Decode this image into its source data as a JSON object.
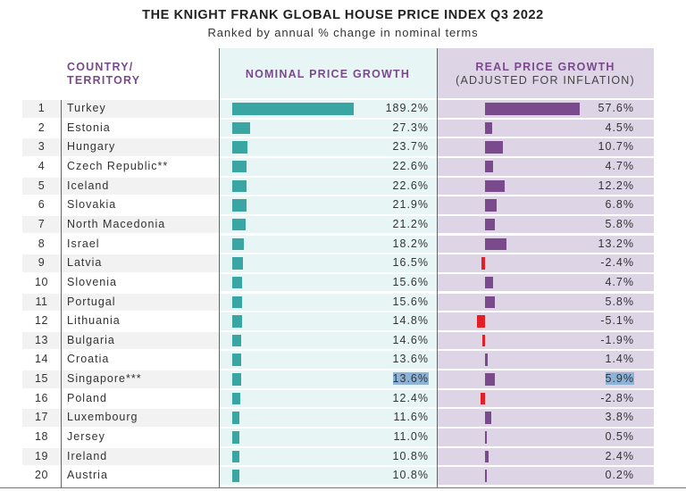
{
  "chart_data": {
    "type": "table",
    "title": "THE KNIGHT FRANK GLOBAL HOUSE PRICE INDEX Q3 2022",
    "subtitle": "Ranked by annual % change in nominal terms",
    "columns": {
      "country": "COUNTRY/ TERRITORY",
      "nominal": "NOMINAL PRICE GROWTH",
      "real": "REAL PRICE GROWTH",
      "real_sub": "(ADJUSTED FOR INFLATION)"
    },
    "unit": "%",
    "nominal_range": [
      0,
      189.2
    ],
    "real_range": [
      -5.1,
      57.6
    ],
    "colors": {
      "nominal_bar": "#3aa6a4",
      "real_positive_bar": "#7a4a8c",
      "real_negative_bar": "#e41e26",
      "header_text": "#7a4a8c",
      "nominal_bg": "#e8f5f5",
      "real_bg": "#ddd4e6"
    },
    "rows": [
      {
        "rank": "1",
        "country": "Turkey",
        "nominal": 189.2,
        "nominal_label": "189.2%",
        "real": 57.6,
        "real_label": "57.6%"
      },
      {
        "rank": "2",
        "country": "Estonia",
        "nominal": 27.3,
        "nominal_label": "27.3%",
        "real": 4.5,
        "real_label": "4.5%"
      },
      {
        "rank": "3",
        "country": "Hungary",
        "nominal": 23.7,
        "nominal_label": "23.7%",
        "real": 10.7,
        "real_label": "10.7%"
      },
      {
        "rank": "4",
        "country": "Czech Republic**",
        "nominal": 22.6,
        "nominal_label": "22.6%",
        "real": 4.7,
        "real_label": "4.7%"
      },
      {
        "rank": "5",
        "country": "Iceland",
        "nominal": 22.6,
        "nominal_label": "22.6%",
        "real": 12.2,
        "real_label": "12.2%"
      },
      {
        "rank": "6",
        "country": "Slovakia",
        "nominal": 21.9,
        "nominal_label": "21.9%",
        "real": 6.8,
        "real_label": "6.8%"
      },
      {
        "rank": "7",
        "country": "North Macedonia",
        "nominal": 21.2,
        "nominal_label": "21.2%",
        "real": 5.8,
        "real_label": "5.8%"
      },
      {
        "rank": "8",
        "country": "Israel",
        "nominal": 18.2,
        "nominal_label": "18.2%",
        "real": 13.2,
        "real_label": "13.2%"
      },
      {
        "rank": "9",
        "country": "Latvia",
        "nominal": 16.5,
        "nominal_label": "16.5%",
        "real": -2.4,
        "real_label": "-2.4%"
      },
      {
        "rank": "10",
        "country": "Slovenia",
        "nominal": 15.6,
        "nominal_label": "15.6%",
        "real": 4.7,
        "real_label": "4.7%"
      },
      {
        "rank": "11",
        "country": "Portugal",
        "nominal": 15.6,
        "nominal_label": "15.6%",
        "real": 5.8,
        "real_label": "5.8%"
      },
      {
        "rank": "12",
        "country": "Lithuania",
        "nominal": 14.8,
        "nominal_label": "14.8%",
        "real": -5.1,
        "real_label": "-5.1%"
      },
      {
        "rank": "13",
        "country": "Bulgaria",
        "nominal": 14.6,
        "nominal_label": "14.6%",
        "real": -1.9,
        "real_label": "-1.9%"
      },
      {
        "rank": "14",
        "country": "Croatia",
        "nominal": 13.6,
        "nominal_label": "13.6%",
        "real": 1.4,
        "real_label": "1.4%"
      },
      {
        "rank": "15",
        "country": "Singapore***",
        "nominal": 13.6,
        "nominal_label": "13.6%",
        "real": 5.9,
        "real_label": "5.9%",
        "highlighted": true
      },
      {
        "rank": "16",
        "country": "Poland",
        "nominal": 12.4,
        "nominal_label": "12.4%",
        "real": -2.8,
        "real_label": "-2.8%"
      },
      {
        "rank": "17",
        "country": "Luxembourg",
        "nominal": 11.6,
        "nominal_label": "11.6%",
        "real": 3.8,
        "real_label": "3.8%"
      },
      {
        "rank": "18",
        "country": "Jersey",
        "nominal": 11.0,
        "nominal_label": "11.0%",
        "real": 0.5,
        "real_label": "0.5%"
      },
      {
        "rank": "19",
        "country": "Ireland",
        "nominal": 10.8,
        "nominal_label": "10.8%",
        "real": 2.4,
        "real_label": "2.4%"
      },
      {
        "rank": "20",
        "country": "Austria",
        "nominal": 10.8,
        "nominal_label": "10.8%",
        "real": 0.2,
        "real_label": "0.2%"
      }
    ]
  }
}
